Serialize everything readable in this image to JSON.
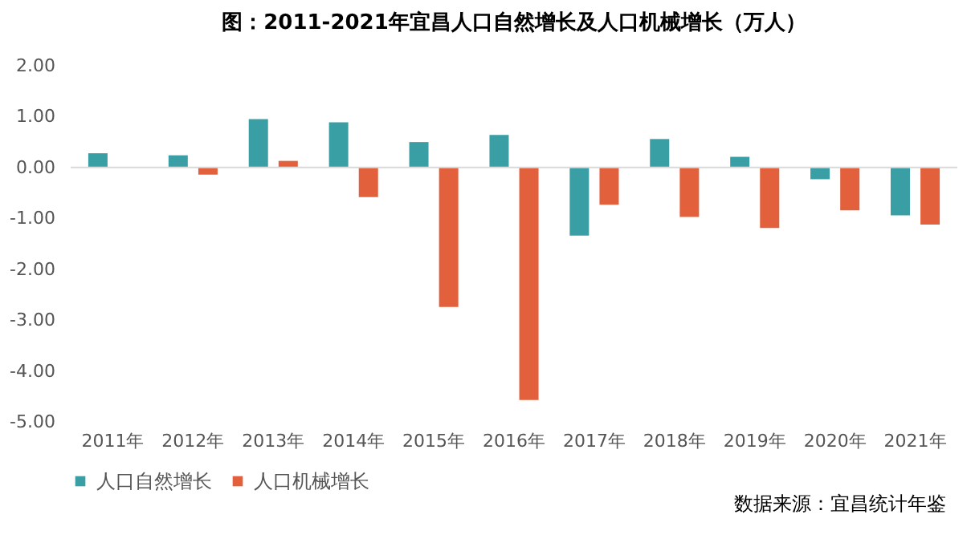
{
  "chart_data": {
    "type": "bar",
    "title": "图：2011-2021年宜昌人口自然增长及人口机械增长（万人）",
    "categories": [
      "2011年",
      "2012年",
      "2013年",
      "2014年",
      "2015年",
      "2016年",
      "2017年",
      "2018年",
      "2019年",
      "2020年",
      "2021年"
    ],
    "series": [
      {
        "name": "人口自然增长",
        "color": "#3a9ea5",
        "values": [
          0.28,
          0.24,
          0.95,
          0.89,
          0.5,
          0.64,
          -1.34,
          0.56,
          0.21,
          -0.23,
          -0.94
        ]
      },
      {
        "name": "人口机械增长",
        "color": "#e2603c",
        "values": [
          0,
          -0.14,
          0.13,
          -0.58,
          -2.74,
          -4.57,
          -0.73,
          -0.97,
          -1.19,
          -0.84,
          -1.12
        ]
      }
    ],
    "ylim": [
      -5,
      2
    ],
    "yticks": [
      {
        "value": 2,
        "label": "2.00"
      },
      {
        "value": 1,
        "label": "1.00"
      },
      {
        "value": 0,
        "label": "0.00"
      },
      {
        "value": -1,
        "label": "-1.00"
      },
      {
        "value": -2,
        "label": "-2.00"
      },
      {
        "value": -3,
        "label": "-3.00"
      },
      {
        "value": -4,
        "label": "-4.00"
      },
      {
        "value": -5,
        "label": "-5.00"
      }
    ],
    "ref_lines": [
      {
        "axis": "y",
        "value": 0,
        "color": "#d9d9d9"
      }
    ],
    "grid": false,
    "legend": "bottom",
    "annotations": [
      "数据来源：宜昌统计年鉴"
    ]
  }
}
